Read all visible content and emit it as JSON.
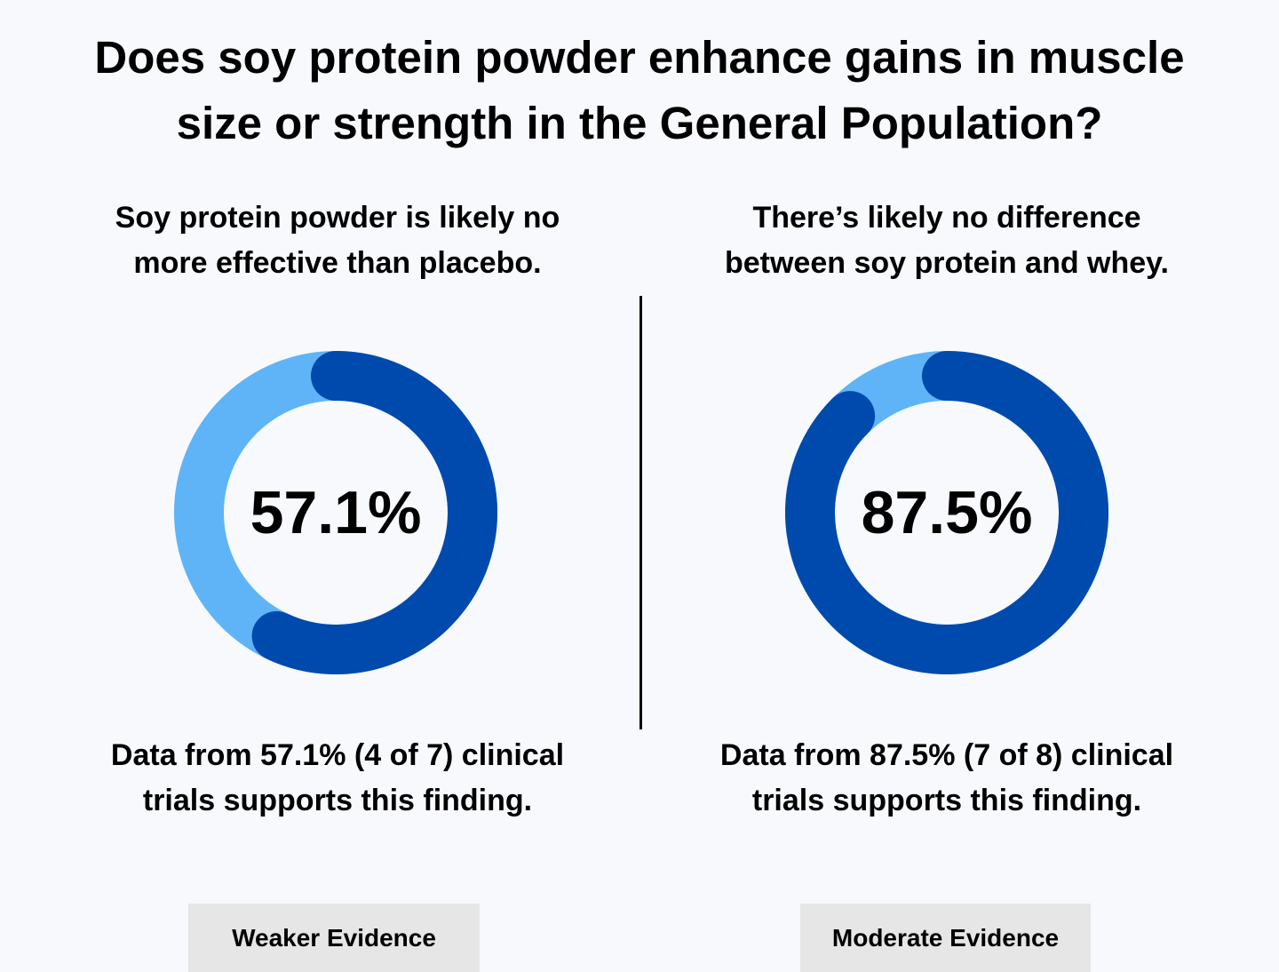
{
  "title_lines": [
    "Does soy protein powder enhance gains in muscle",
    "size or strength in the General Population?"
  ],
  "colors": {
    "supporting": "#004aad",
    "remaining": "#5fb4f7",
    "background": "#f7f9fc",
    "badge": "#e6e6e6"
  },
  "chart_data": [
    {
      "type": "pie",
      "style": "donut",
      "title": "",
      "center_label": "57.1%",
      "values": [
        57.1,
        42.9
      ],
      "finding_lines": [
        "Soy protein powder is likely no",
        "more effective than placebo."
      ],
      "support_lines": [
        "Data from 57.1% (4 of 7) clinical",
        "trials supports this finding."
      ],
      "badge": "Weaker Evidence"
    },
    {
      "type": "pie",
      "style": "donut",
      "title": "",
      "center_label": "87.5%",
      "values": [
        87.5,
        12.5
      ],
      "finding_lines": [
        "There’s likely no difference",
        "between soy protein and whey."
      ],
      "support_lines": [
        "Data from 87.5% (7 of 8) clinical",
        "trials supports this finding."
      ],
      "badge": "Moderate Evidence"
    }
  ]
}
